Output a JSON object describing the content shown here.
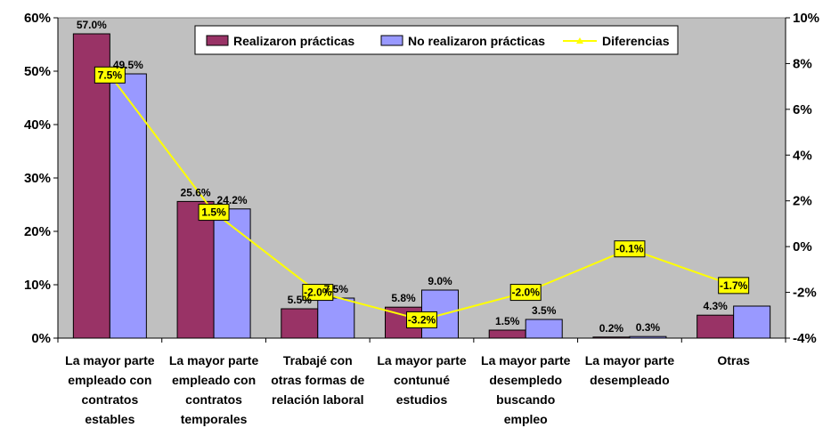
{
  "chart_data": {
    "type": "bar",
    "categories": [
      [
        "La mayor parte",
        "empleado con",
        "contratos",
        "estables"
      ],
      [
        "La mayor parte",
        "empleado con",
        "contratos",
        "temporales"
      ],
      [
        "Trabajé con",
        "otras formas de",
        "relación laboral"
      ],
      [
        "La mayor parte",
        "contunué",
        "estudios"
      ],
      [
        "La mayor parte",
        "desempledo",
        "buscando",
        "empleo"
      ],
      [
        "La mayor parte",
        "desempleado"
      ],
      [
        "Otras"
      ]
    ],
    "series": [
      {
        "name": "Realizaron prácticas",
        "type": "bar",
        "axis": "left",
        "color": "#993366",
        "values": [
          57.0,
          25.6,
          5.5,
          5.8,
          1.5,
          0.2,
          4.3
        ],
        "labels": [
          "57.0%",
          "25.6%",
          "5.5%",
          "5.8%",
          "1.5%",
          "0.2%",
          "4.3%"
        ]
      },
      {
        "name": "No realizaron prácticas",
        "type": "bar",
        "axis": "left",
        "color": "#9999ff",
        "values": [
          49.5,
          24.2,
          7.5,
          9.0,
          3.5,
          0.3,
          6.0
        ],
        "labels": [
          "49.5%",
          "24.2%",
          "7.5%",
          "9.0%",
          "3.5%",
          "0.3%",
          ""
        ]
      },
      {
        "name": "Diferencias",
        "type": "line",
        "axis": "right",
        "color": "#ffff00",
        "values": [
          7.5,
          1.5,
          -2.0,
          -3.2,
          -2.0,
          -0.1,
          -1.7
        ],
        "labels": [
          "7.5%",
          "1.5%",
          "-2.0%",
          "-3.2%",
          "-2.0%",
          "-0.1%",
          "-1.7%"
        ]
      }
    ],
    "y_left": {
      "min": 0,
      "max": 60,
      "ticks": [
        0,
        10,
        20,
        30,
        40,
        50,
        60
      ],
      "tick_labels": [
        "0%",
        "10%",
        "20%",
        "30%",
        "40%",
        "50%",
        "60%"
      ]
    },
    "y_right": {
      "min": -4,
      "max": 10,
      "ticks": [
        -4,
        -2,
        0,
        2,
        4,
        6,
        8,
        10
      ],
      "tick_labels": [
        "-4%",
        "-2%",
        "0%",
        "2%",
        "4%",
        "6%",
        "8%",
        "10%"
      ]
    },
    "title": "",
    "xlabel": "",
    "ylabel": "",
    "grid": false,
    "legend_position": "top-right",
    "plot_background": "#c0c0c0"
  }
}
